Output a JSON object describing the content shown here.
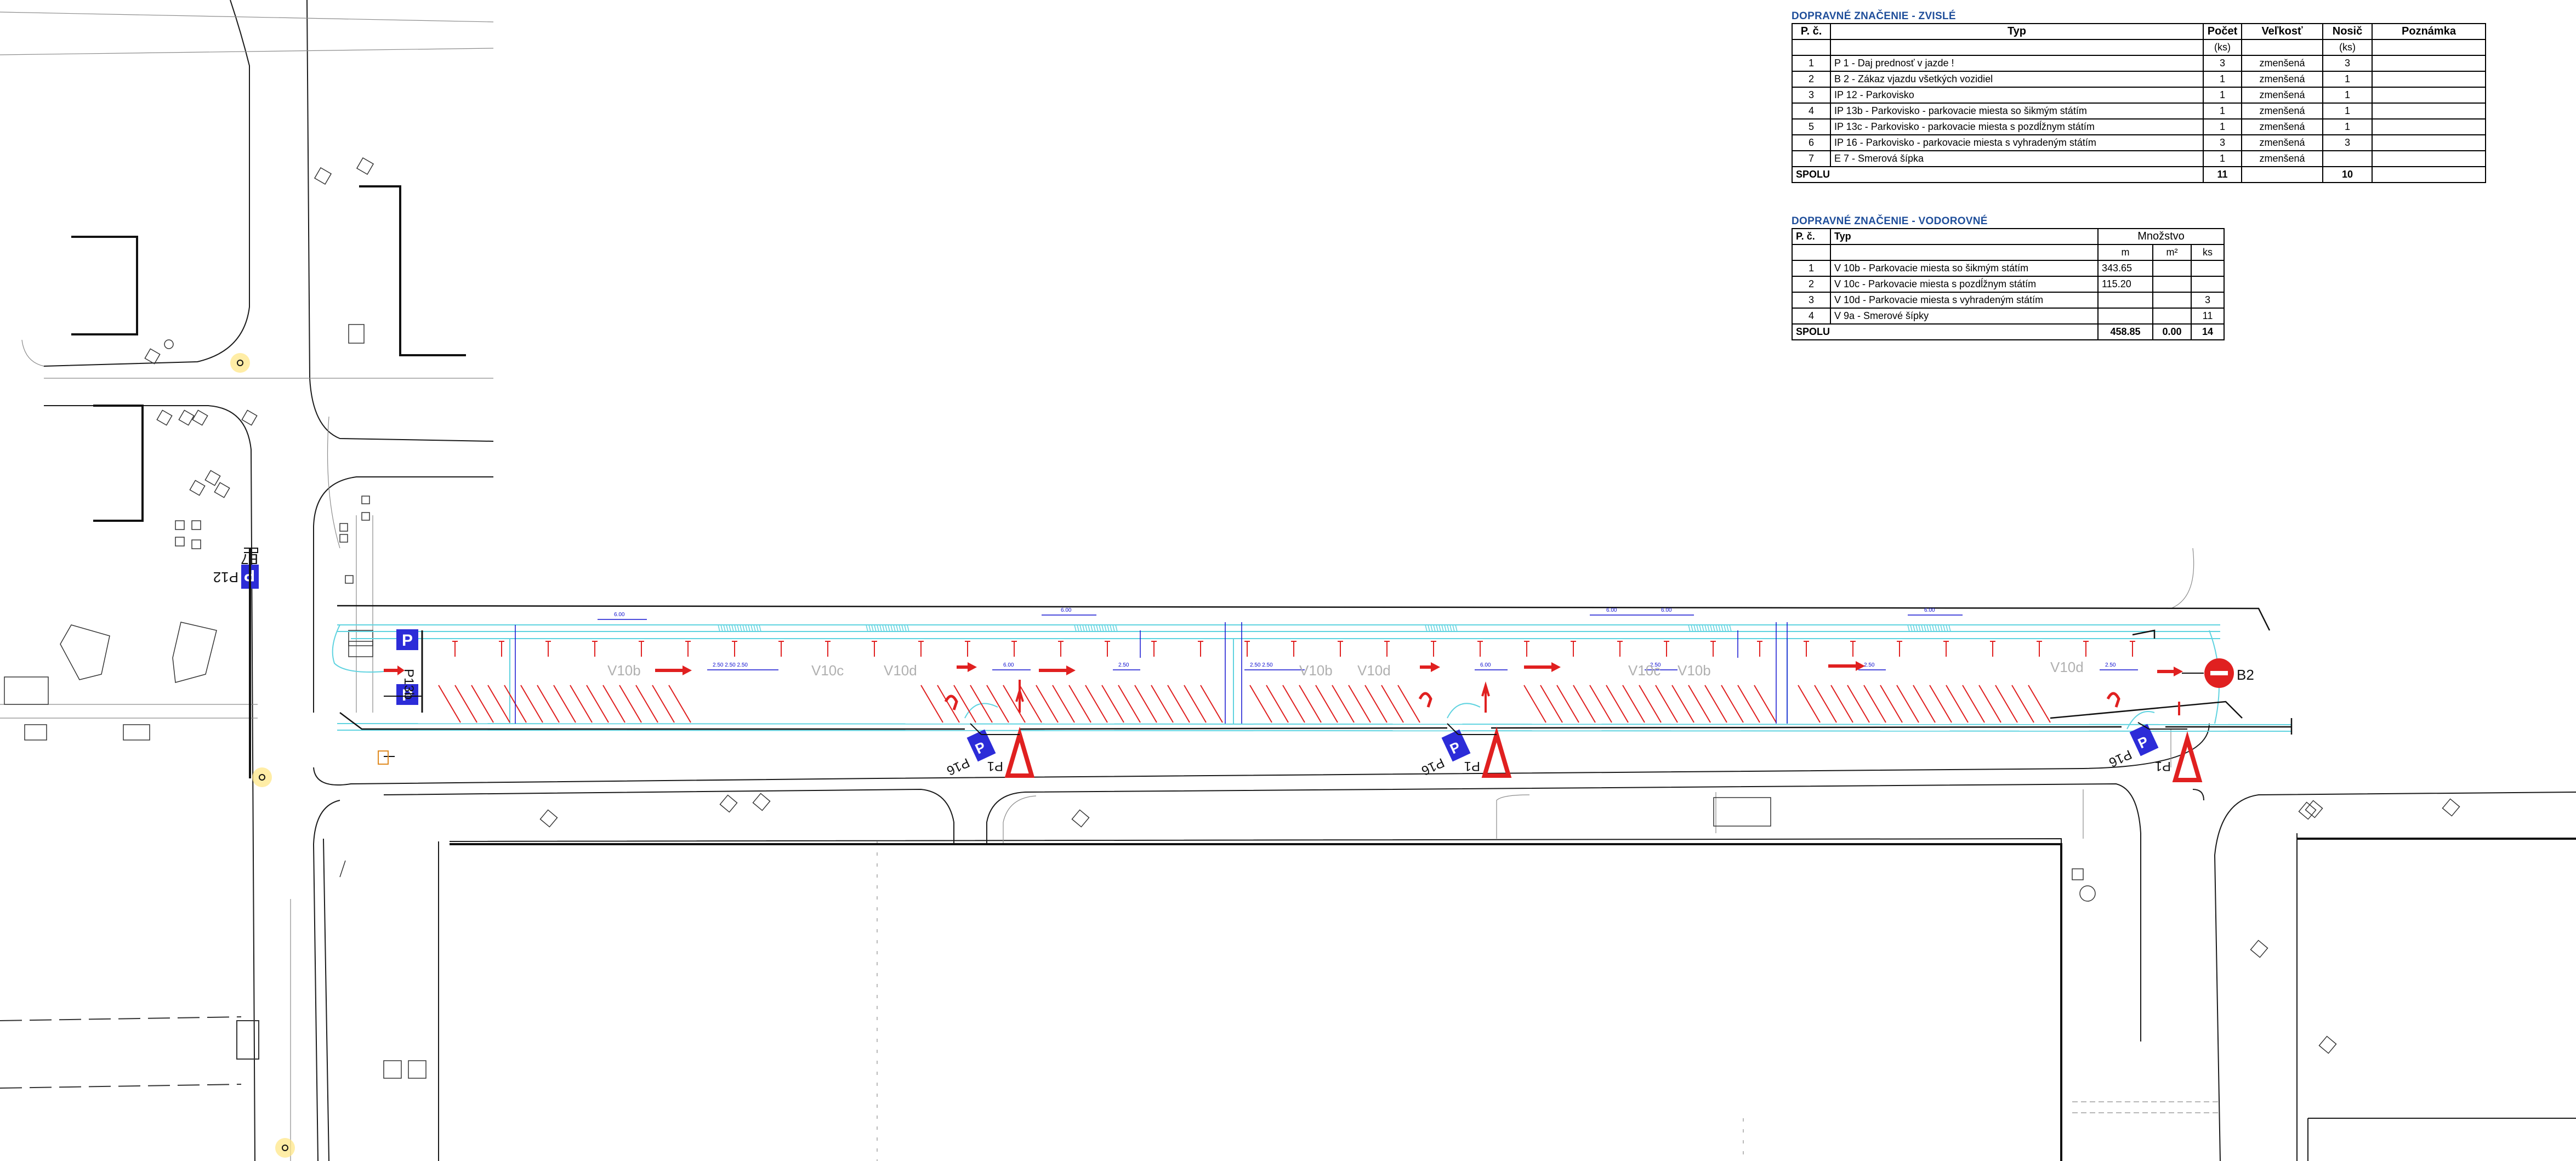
{
  "vertical_signs": {
    "title": "DOPRAVNÉ ZNAČENIE - ZVISLÉ",
    "headers": [
      "P. č.",
      "Typ",
      "Počet",
      "Veľkosť",
      "Nosič",
      "Poznámka"
    ],
    "units": [
      "",
      "",
      "(ks)",
      "",
      "(ks)",
      ""
    ],
    "rows": [
      {
        "no": "1",
        "type": "P 1 - Daj prednosť v jazde !",
        "count": "3",
        "size": "zmenšená",
        "carrier": "3",
        "note": ""
      },
      {
        "no": "2",
        "type": "B 2 - Zákaz vjazdu všetkých vozidiel",
        "count": "1",
        "size": "zmenšená",
        "carrier": "1",
        "note": ""
      },
      {
        "no": "3",
        "type": "IP 12 - Parkovisko",
        "count": "1",
        "size": "zmenšená",
        "carrier": "1",
        "note": ""
      },
      {
        "no": "4",
        "type": "IP 13b - Parkovisko - parkovacie miesta so šikmým státím",
        "count": "1",
        "size": "zmenšená",
        "carrier": "1",
        "note": ""
      },
      {
        "no": "5",
        "type": "IP 13c - Parkovisko - parkovacie miesta s pozdĺžnym státím",
        "count": "1",
        "size": "zmenšená",
        "carrier": "1",
        "note": ""
      },
      {
        "no": "6",
        "type": "IP 16 - Parkovisko - parkovacie miesta s vyhradeným státím",
        "count": "3",
        "size": "zmenšená",
        "carrier": "3",
        "note": ""
      },
      {
        "no": "7",
        "type": "E 7 - Smerová šípka",
        "count": "1",
        "size": "zmenšená",
        "carrier": "",
        "note": ""
      }
    ],
    "total": {
      "label": "SPOLU",
      "count": "11",
      "carrier": "10"
    }
  },
  "horizontal_signs": {
    "title": "DOPRAVNÉ ZNAČENIE - VODOROVNÉ",
    "headers": [
      "P. č.",
      "Typ",
      "Množstvo"
    ],
    "units": [
      "m",
      "m²",
      "ks"
    ],
    "rows": [
      {
        "no": "1",
        "type": "V 10b - Parkovacie miesta so šikmým státím",
        "m": "343.65",
        "m2": "",
        "ks": ""
      },
      {
        "no": "2",
        "type": "V 10c - Parkovacie miesta s pozdĺžnym státím",
        "m": "115.20",
        "m2": "",
        "ks": ""
      },
      {
        "no": "3",
        "type": "V 10d - Parkovacie miesta s vyhradeným státím",
        "m": "",
        "m2": "",
        "ks": "3"
      },
      {
        "no": "4",
        "type": "V 9a - Smerové šípky",
        "m": "",
        "m2": "",
        "ks": "11"
      }
    ],
    "total": {
      "label": "SPOLU",
      "m": "458.85",
      "m2": "0.00",
      "ks": "14"
    }
  },
  "plan_labels": {
    "marking_left_1": "V10b",
    "marking_left_2": "V10c",
    "marking_left_3": "V10d",
    "marking_mid_1": "V10b",
    "marking_mid_2": "V10d",
    "marking_right_1": "V10c",
    "marking_right_2": "V10b",
    "marking_right_3": "V10d",
    "sign_p12": "P12",
    "sign_e7": "E7",
    "sign_ip13b": "P13b",
    "sign_p16_a": "P16",
    "sign_p16_b": "P16",
    "sign_p16_c": "P16",
    "sign_p1_a": "P1",
    "sign_p1_b": "P1",
    "sign_p1_c": "P1",
    "sign_b2": "B2",
    "parking_symbol": "P"
  },
  "colors": {
    "lines": "#1a1a1a",
    "thin_lines": "#8a8a8a",
    "curb": "#5fd3e0",
    "parking_hatch": "#e02020",
    "dimension": "#1010d0",
    "sign_blue": "#2c2cd8",
    "sign_red": "#e02020",
    "lamp": "#ffe680",
    "table_title": "#1f4e9a"
  }
}
